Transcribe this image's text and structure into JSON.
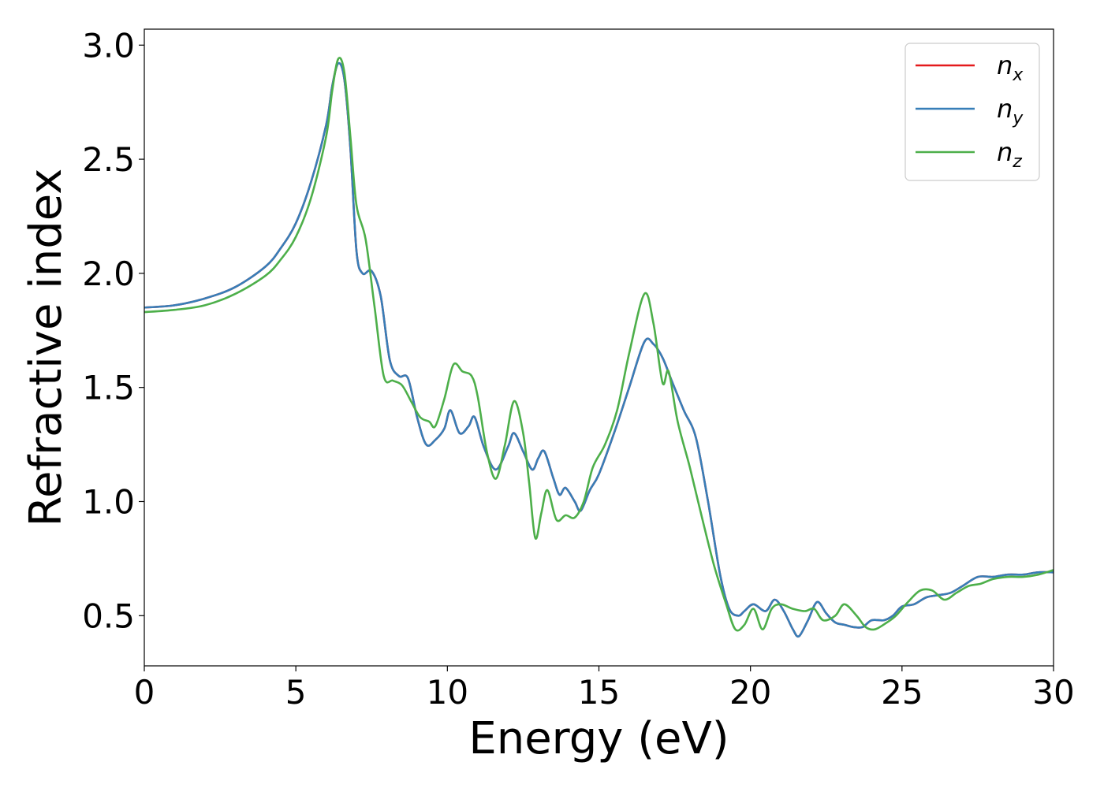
{
  "chart_data": {
    "type": "line",
    "title": "",
    "xlabel": "Energy (eV)",
    "ylabel": "Refractive index",
    "xlim": [
      0,
      30
    ],
    "ylim": [
      0.28,
      3.07
    ],
    "xticks": [
      0,
      5,
      10,
      15,
      20,
      25,
      30
    ],
    "yticks": [
      0.5,
      1.0,
      1.5,
      2.0,
      2.5,
      3.0
    ],
    "xtick_labels": [
      "0",
      "5",
      "10",
      "15",
      "20",
      "25",
      "30"
    ],
    "ytick_labels": [
      "0.5",
      "1.0",
      "1.5",
      "2.0",
      "2.5",
      "3.0"
    ],
    "grid": false,
    "legend_position": "top-right",
    "series": [
      {
        "name": "n",
        "subscript": "x",
        "color": "#e41a1c",
        "x": [
          0,
          1,
          2,
          3,
          4,
          4.5,
          5,
          5.5,
          6,
          6.2,
          6.4,
          6.6,
          6.8,
          7.0,
          7.2,
          7.5,
          7.8,
          8.1,
          8.4,
          8.7,
          9.0,
          9.3,
          9.6,
          9.9,
          10.1,
          10.4,
          10.7,
          10.9,
          11.2,
          11.6,
          12.0,
          12.2,
          12.5,
          12.8,
          13.0,
          13.2,
          13.5,
          13.7,
          13.9,
          14.2,
          14.4,
          14.7,
          15.0,
          15.5,
          16.0,
          16.5,
          16.8,
          17.1,
          17.4,
          17.8,
          18.2,
          18.6,
          19.0,
          19.3,
          19.6,
          19.8,
          20.1,
          20.5,
          20.8,
          21.1,
          21.4,
          21.6,
          21.9,
          22.2,
          22.5,
          22.8,
          23.1,
          23.4,
          23.7,
          24.0,
          24.4,
          24.7,
          25.0,
          25.4,
          25.8,
          26.2,
          26.6,
          27.0,
          27.5,
          28.0,
          28.5,
          29.0,
          29.5,
          30.0
        ],
        "values": [
          1.85,
          1.86,
          1.89,
          1.94,
          2.03,
          2.11,
          2.22,
          2.4,
          2.65,
          2.82,
          2.92,
          2.85,
          2.55,
          2.1,
          2.0,
          2.01,
          1.9,
          1.62,
          1.55,
          1.54,
          1.37,
          1.25,
          1.27,
          1.32,
          1.4,
          1.3,
          1.33,
          1.37,
          1.24,
          1.14,
          1.24,
          1.3,
          1.22,
          1.14,
          1.19,
          1.22,
          1.1,
          1.03,
          1.06,
          1.0,
          0.96,
          1.05,
          1.12,
          1.3,
          1.5,
          1.7,
          1.69,
          1.63,
          1.53,
          1.4,
          1.28,
          1.0,
          0.68,
          0.53,
          0.5,
          0.52,
          0.55,
          0.52,
          0.57,
          0.52,
          0.44,
          0.41,
          0.48,
          0.56,
          0.51,
          0.47,
          0.46,
          0.45,
          0.45,
          0.48,
          0.48,
          0.5,
          0.54,
          0.55,
          0.58,
          0.59,
          0.6,
          0.63,
          0.67,
          0.67,
          0.68,
          0.68,
          0.69,
          0.69
        ]
      },
      {
        "name": "n",
        "subscript": "y",
        "color": "#377eb8",
        "x": [
          0,
          1,
          2,
          3,
          4,
          4.5,
          5,
          5.5,
          6,
          6.2,
          6.4,
          6.6,
          6.8,
          7.0,
          7.2,
          7.5,
          7.8,
          8.1,
          8.4,
          8.7,
          9.0,
          9.3,
          9.6,
          9.9,
          10.1,
          10.4,
          10.7,
          10.9,
          11.2,
          11.6,
          12.0,
          12.2,
          12.5,
          12.8,
          13.0,
          13.2,
          13.5,
          13.7,
          13.9,
          14.2,
          14.4,
          14.7,
          15.0,
          15.5,
          16.0,
          16.5,
          16.8,
          17.1,
          17.4,
          17.8,
          18.2,
          18.6,
          19.0,
          19.3,
          19.6,
          19.8,
          20.1,
          20.5,
          20.8,
          21.1,
          21.4,
          21.6,
          21.9,
          22.2,
          22.5,
          22.8,
          23.1,
          23.4,
          23.7,
          24.0,
          24.4,
          24.7,
          25.0,
          25.4,
          25.8,
          26.2,
          26.6,
          27.0,
          27.5,
          28.0,
          28.5,
          29.0,
          29.5,
          30.0
        ],
        "values": [
          1.85,
          1.86,
          1.89,
          1.94,
          2.03,
          2.11,
          2.22,
          2.4,
          2.65,
          2.82,
          2.92,
          2.85,
          2.55,
          2.1,
          2.0,
          2.01,
          1.9,
          1.62,
          1.55,
          1.54,
          1.37,
          1.25,
          1.27,
          1.32,
          1.4,
          1.3,
          1.33,
          1.37,
          1.24,
          1.14,
          1.24,
          1.3,
          1.22,
          1.14,
          1.19,
          1.22,
          1.1,
          1.03,
          1.06,
          1.0,
          0.96,
          1.05,
          1.12,
          1.3,
          1.5,
          1.7,
          1.69,
          1.63,
          1.53,
          1.4,
          1.28,
          1.0,
          0.68,
          0.53,
          0.5,
          0.52,
          0.55,
          0.52,
          0.57,
          0.52,
          0.44,
          0.41,
          0.48,
          0.56,
          0.51,
          0.47,
          0.46,
          0.45,
          0.45,
          0.48,
          0.48,
          0.5,
          0.54,
          0.55,
          0.58,
          0.59,
          0.6,
          0.63,
          0.67,
          0.67,
          0.68,
          0.68,
          0.69,
          0.69
        ]
      },
      {
        "name": "n",
        "subscript": "z",
        "color": "#4daf4a",
        "x": [
          0,
          1,
          2,
          3,
          4,
          4.5,
          5,
          5.5,
          6,
          6.2,
          6.4,
          6.6,
          6.8,
          7.0,
          7.3,
          7.6,
          7.9,
          8.2,
          8.5,
          8.8,
          9.1,
          9.4,
          9.6,
          9.9,
          10.2,
          10.5,
          10.8,
          11.0,
          11.3,
          11.6,
          11.9,
          12.2,
          12.5,
          12.7,
          12.9,
          13.1,
          13.3,
          13.6,
          13.9,
          14.2,
          14.5,
          14.8,
          15.2,
          15.6,
          16.0,
          16.5,
          16.8,
          17.1,
          17.3,
          17.6,
          18.0,
          18.4,
          18.8,
          19.2,
          19.5,
          19.8,
          20.1,
          20.4,
          20.7,
          21.0,
          21.4,
          21.8,
          22.1,
          22.4,
          22.8,
          23.1,
          23.5,
          23.8,
          24.1,
          24.5,
          24.8,
          25.2,
          25.6,
          26.0,
          26.4,
          26.8,
          27.2,
          27.6,
          28.0,
          28.5,
          29.0,
          29.5,
          30.0
        ],
        "values": [
          1.83,
          1.84,
          1.86,
          1.91,
          1.99,
          2.06,
          2.16,
          2.33,
          2.6,
          2.8,
          2.94,
          2.88,
          2.6,
          2.3,
          2.15,
          1.85,
          1.55,
          1.53,
          1.51,
          1.44,
          1.37,
          1.35,
          1.33,
          1.45,
          1.6,
          1.57,
          1.55,
          1.46,
          1.22,
          1.1,
          1.25,
          1.44,
          1.3,
          1.08,
          0.84,
          0.95,
          1.05,
          0.92,
          0.94,
          0.93,
          1.0,
          1.15,
          1.25,
          1.4,
          1.65,
          1.91,
          1.78,
          1.52,
          1.57,
          1.35,
          1.15,
          0.93,
          0.72,
          0.55,
          0.44,
          0.46,
          0.53,
          0.44,
          0.53,
          0.55,
          0.53,
          0.52,
          0.53,
          0.48,
          0.5,
          0.55,
          0.5,
          0.45,
          0.44,
          0.47,
          0.5,
          0.56,
          0.61,
          0.61,
          0.57,
          0.6,
          0.63,
          0.64,
          0.66,
          0.67,
          0.67,
          0.68,
          0.7
        ]
      }
    ]
  }
}
